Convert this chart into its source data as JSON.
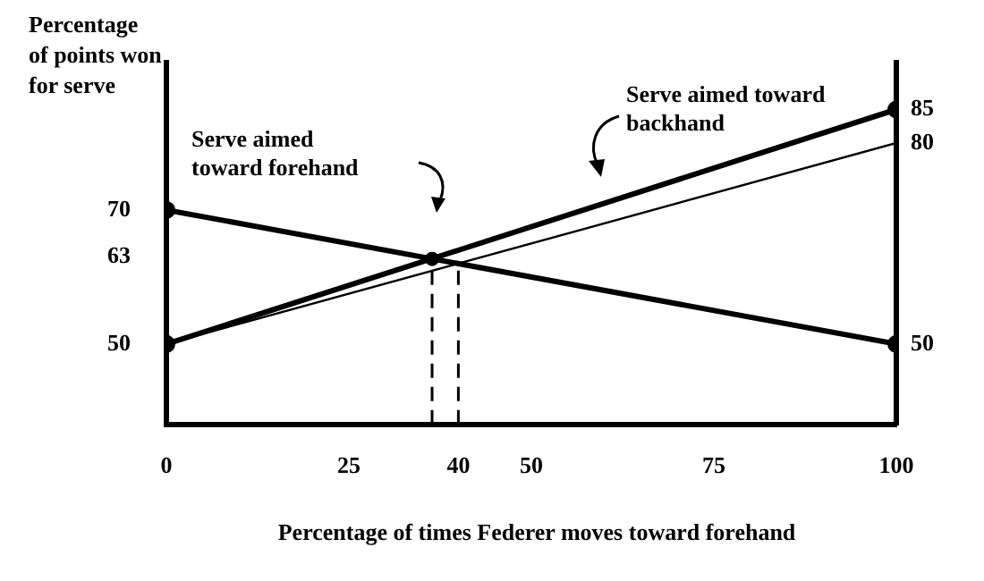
{
  "chart_data": {
    "type": "line",
    "ylabel": "Percentage\nof points won\nfor serve",
    "xlabel": "Percentage of times Federer moves toward forehand",
    "xlim": [
      0,
      100
    ],
    "xticks": [
      0,
      25,
      40,
      50,
      75,
      100
    ],
    "ylim": [
      38,
      92
    ],
    "yticks": [
      50,
      63,
      70
    ],
    "y2lim": [
      38,
      92
    ],
    "y2ticks": [
      50,
      80,
      85
    ],
    "grid": false,
    "legend": false,
    "series": [
      {
        "x": [
          0,
          100
        ],
        "values": [
          70,
          50
        ],
        "color": "#000000",
        "marker": "circle",
        "line_style": "solid"
      },
      {
        "x": [
          0,
          100
        ],
        "values": [
          50,
          85
        ],
        "color": "#000000",
        "marker": "circle",
        "line_style": "solid"
      },
      {
        "x": [
          0,
          100
        ],
        "values": [
          50,
          80
        ],
        "color": "#000000",
        "marker": "none",
        "line_style": "solid"
      },
      {
        "type": "scatter",
        "x": [
          36.4
        ],
        "values": [
          62.7
        ],
        "color": "#000000",
        "marker": "circle"
      },
      {
        "x": [
          36.4,
          36.4
        ],
        "values": [
          38,
          62.7
        ],
        "color": "#000000",
        "marker": "none",
        "line_style": "dashed"
      },
      {
        "x": [
          40,
          40
        ],
        "values": [
          38,
          62
        ],
        "color": "#000000",
        "marker": "none",
        "line_style": "dashed"
      }
    ],
    "annotations": [
      "Serve aimed\ntoward forehand",
      "Serve aimed toward\nbackhand"
    ]
  }
}
